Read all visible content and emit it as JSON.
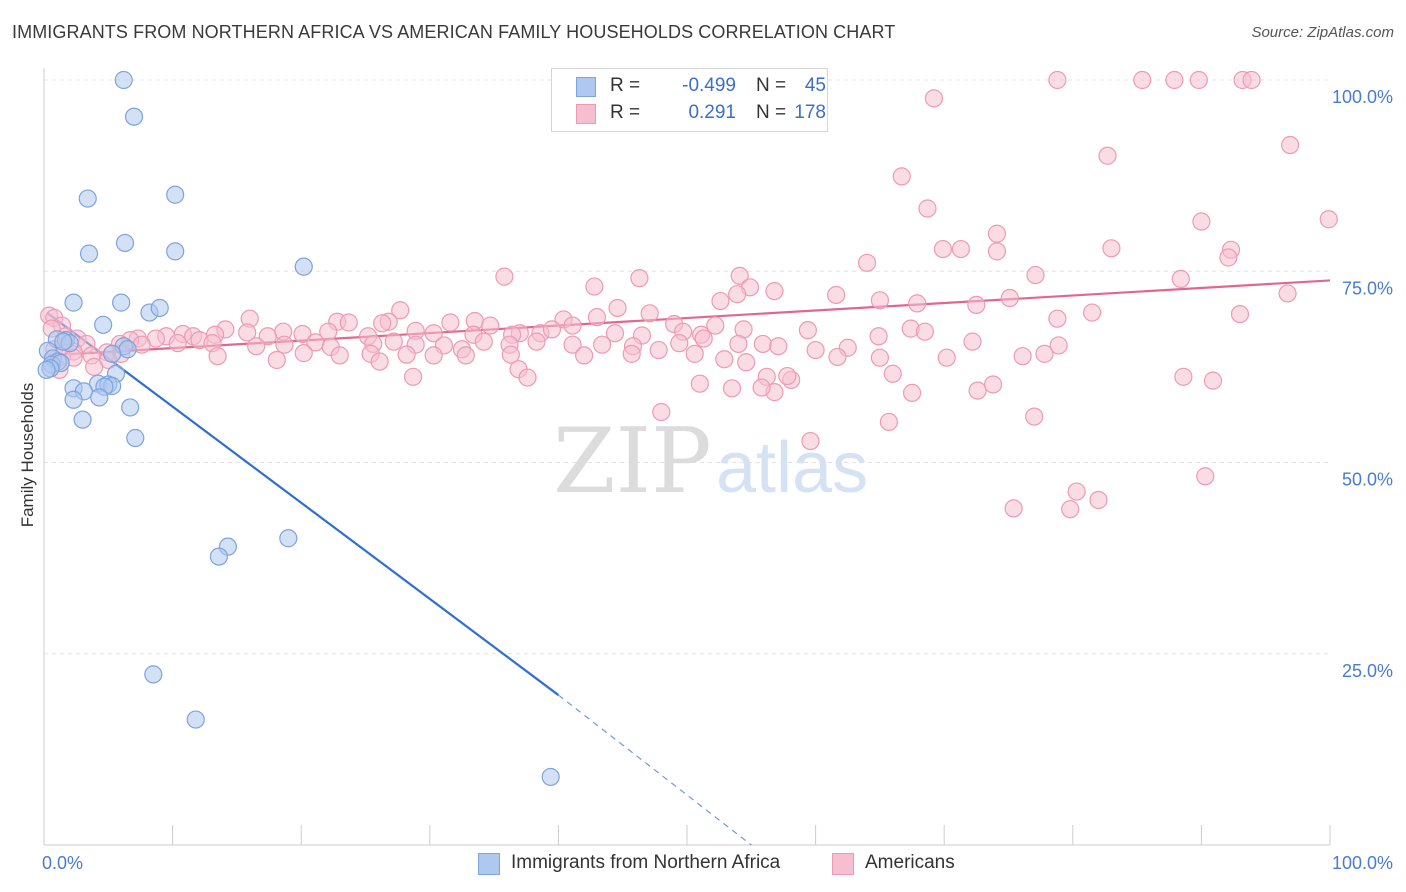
{
  "title": "IMMIGRANTS FROM NORTHERN AFRICA VS AMERICAN FAMILY HOUSEHOLDS CORRELATION CHART",
  "source": "Source: ZipAtlas.com",
  "watermark": {
    "zip": "ZIP",
    "atlas": "atlas"
  },
  "legend_top": [
    {
      "r_label": "R =",
      "r_value": "-0.499",
      "n_label": "N =",
      "n_value": "45"
    },
    {
      "r_label": "R =",
      "r_value": "0.291",
      "n_label": "N =",
      "n_value": "178"
    }
  ],
  "colors": {
    "blue_fill": "#aec8ef",
    "blue_stroke": "#7ea3dd",
    "blue_line": "#2f6fd0",
    "pink_fill": "#f6bfcf",
    "pink_stroke": "#ee9ab4",
    "pink_line": "#e2678f",
    "tick_label": "#4a7bd0",
    "grid": "#e3e3e3",
    "axis": "#cccccc"
  },
  "chart_data": {
    "type": "scatter",
    "title": "IMMIGRANTS FROM NORTHERN AFRICA VS AMERICAN FAMILY HOUSEHOLDS CORRELATION CHART",
    "xlabel": "",
    "ylabel": "Family Households",
    "xlim": [
      0,
      100
    ],
    "ylim": [
      0,
      100
    ],
    "x_tick_labels": [
      "0.0%",
      "100.0%"
    ],
    "y_ticks": [
      25,
      50,
      75,
      100
    ],
    "y_tick_labels": [
      "25.0%",
      "50.0%",
      "75.0%",
      "100.0%"
    ],
    "grid": true,
    "legend_position": "top-center",
    "series": [
      {
        "name": "Immigrants from Northern Africa",
        "color": "#aec8ef",
        "r": -0.499,
        "n": 45,
        "trend": {
          "x": [
            0.3,
            40.0
          ],
          "y": [
            69.5,
            19.6
          ],
          "dashed_to": [
            55.0,
            0.0
          ]
        },
        "points": [
          [
            6.2,
            100
          ],
          [
            7.0,
            95.2
          ],
          [
            3.4,
            84.5
          ],
          [
            10.2,
            85.0
          ],
          [
            6.3,
            78.7
          ],
          [
            3.5,
            77.3
          ],
          [
            10.2,
            77.6
          ],
          [
            20.2,
            75.6
          ],
          [
            2.3,
            70.9
          ],
          [
            6.0,
            70.9
          ],
          [
            8.2,
            69.6
          ],
          [
            9.0,
            70.2
          ],
          [
            4.6,
            68.0
          ],
          [
            1.0,
            66.1
          ],
          [
            1.7,
            66.0
          ],
          [
            2.0,
            65.6
          ],
          [
            1.5,
            65.8
          ],
          [
            6.2,
            65.2
          ],
          [
            6.5,
            64.8
          ],
          [
            5.3,
            64.2
          ],
          [
            0.3,
            64.6
          ],
          [
            0.7,
            63.6
          ],
          [
            1.1,
            63.2
          ],
          [
            0.6,
            62.8
          ],
          [
            1.3,
            63.0
          ],
          [
            0.5,
            62.3
          ],
          [
            0.2,
            62.1
          ],
          [
            5.6,
            61.6
          ],
          [
            4.2,
            60.3
          ],
          [
            5.0,
            60.2
          ],
          [
            5.3,
            60.0
          ],
          [
            4.7,
            59.9
          ],
          [
            2.3,
            59.7
          ],
          [
            3.1,
            59.3
          ],
          [
            4.3,
            58.5
          ],
          [
            2.3,
            58.2
          ],
          [
            6.7,
            57.2
          ],
          [
            3.0,
            55.6
          ],
          [
            7.1,
            53.2
          ],
          [
            19.0,
            40.1
          ],
          [
            14.3,
            39.0
          ],
          [
            13.6,
            37.7
          ],
          [
            8.5,
            22.3
          ],
          [
            11.8,
            16.4
          ],
          [
            39.4,
            8.9
          ]
        ]
      },
      {
        "name": "Americans",
        "color": "#f6bfcf",
        "r": 0.291,
        "n": 178,
        "trend": {
          "x": [
            0.3,
            100
          ],
          "y": [
            64.0,
            73.8
          ]
        },
        "points": [
          [
            78.8,
            100
          ],
          [
            85.4,
            100
          ],
          [
            87.9,
            100
          ],
          [
            89.8,
            100
          ],
          [
            93.2,
            100
          ],
          [
            93.9,
            100
          ],
          [
            69.2,
            97.6
          ],
          [
            96.9,
            91.5
          ],
          [
            82.7,
            90.1
          ],
          [
            66.7,
            87.4
          ],
          [
            68.7,
            83.2
          ],
          [
            99.9,
            81.8
          ],
          [
            90.0,
            81.5
          ],
          [
            74.1,
            79.9
          ],
          [
            69.9,
            77.9
          ],
          [
            71.3,
            77.9
          ],
          [
            83.0,
            78.0
          ],
          [
            92.3,
            77.8
          ],
          [
            74.1,
            77.6
          ],
          [
            92.1,
            76.8
          ],
          [
            64.0,
            76.1
          ],
          [
            77.1,
            74.5
          ],
          [
            35.8,
            74.3
          ],
          [
            46.3,
            74.1
          ],
          [
            54.1,
            74.4
          ],
          [
            88.4,
            74.0
          ],
          [
            42.8,
            73.0
          ],
          [
            54.9,
            72.9
          ],
          [
            56.8,
            72.4
          ],
          [
            53.9,
            72.0
          ],
          [
            61.6,
            71.9
          ],
          [
            75.1,
            71.5
          ],
          [
            65.0,
            71.2
          ],
          [
            52.6,
            71.1
          ],
          [
            67.9,
            70.8
          ],
          [
            72.5,
            70.6
          ],
          [
            96.7,
            72.1
          ],
          [
            44.6,
            70.2
          ],
          [
            47.1,
            69.5
          ],
          [
            93.0,
            69.4
          ],
          [
            81.5,
            69.6
          ],
          [
            27.7,
            69.9
          ],
          [
            78.8,
            68.8
          ],
          [
            43.0,
            69.0
          ],
          [
            40.4,
            68.7
          ],
          [
            33.5,
            68.5
          ],
          [
            41.1,
            67.9
          ],
          [
            26.8,
            68.4
          ],
          [
            49.0,
            68.1
          ],
          [
            52.2,
            67.9
          ],
          [
            22.8,
            68.4
          ],
          [
            23.7,
            68.3
          ],
          [
            31.6,
            68.3
          ],
          [
            34.7,
            67.9
          ],
          [
            16.0,
            68.8
          ],
          [
            26.3,
            68.2
          ],
          [
            0.4,
            69.2
          ],
          [
            0.8,
            68.9
          ],
          [
            1.4,
            67.9
          ],
          [
            14.1,
            67.4
          ],
          [
            15.8,
            67.0
          ],
          [
            18.6,
            67.1
          ],
          [
            22.1,
            67.1
          ],
          [
            28.9,
            67.2
          ],
          [
            37.0,
            66.9
          ],
          [
            38.6,
            66.9
          ],
          [
            44.4,
            66.9
          ],
          [
            46.5,
            66.6
          ],
          [
            49.7,
            67.1
          ],
          [
            51.1,
            66.7
          ],
          [
            54.4,
            67.4
          ],
          [
            59.4,
            67.3
          ],
          [
            67.4,
            67.5
          ],
          [
            68.5,
            67.1
          ],
          [
            39.5,
            67.4
          ],
          [
            30.3,
            66.9
          ],
          [
            33.4,
            66.7
          ],
          [
            36.4,
            66.7
          ],
          [
            25.2,
            66.5
          ],
          [
            20.1,
            66.8
          ],
          [
            10.8,
            66.8
          ],
          [
            11.6,
            66.5
          ],
          [
            13.3,
            66.7
          ],
          [
            12.1,
            66.0
          ],
          [
            17.4,
            66.5
          ],
          [
            9.5,
            66.5
          ],
          [
            8.7,
            66.2
          ],
          [
            7.3,
            66.2
          ],
          [
            0.6,
            67.5
          ],
          [
            1.7,
            66.5
          ],
          [
            2.6,
            66.2
          ],
          [
            6.7,
            66.0
          ],
          [
            5.9,
            65.5
          ],
          [
            3.3,
            65.5
          ],
          [
            7.6,
            65.4
          ],
          [
            10.4,
            65.6
          ],
          [
            13.1,
            65.6
          ],
          [
            16.5,
            65.2
          ],
          [
            18.7,
            65.4
          ],
          [
            21.1,
            65.7
          ],
          [
            22.3,
            65.1
          ],
          [
            25.6,
            65.5
          ],
          [
            27.2,
            65.8
          ],
          [
            28.9,
            65.4
          ],
          [
            31.1,
            65.3
          ],
          [
            32.5,
            64.8
          ],
          [
            34.2,
            65.8
          ],
          [
            36.2,
            65.4
          ],
          [
            38.3,
            65.8
          ],
          [
            41.1,
            65.4
          ],
          [
            43.4,
            65.4
          ],
          [
            45.8,
            65.2
          ],
          [
            47.8,
            64.7
          ],
          [
            49.4,
            65.6
          ],
          [
            51.3,
            66.2
          ],
          [
            54.0,
            65.5
          ],
          [
            55.9,
            65.5
          ],
          [
            57.1,
            65.2
          ],
          [
            64.9,
            66.5
          ],
          [
            72.2,
            65.8
          ],
          [
            78.9,
            65.3
          ],
          [
            60.0,
            64.7
          ],
          [
            62.5,
            65.0
          ],
          [
            2.3,
            64.5
          ],
          [
            4.9,
            64.4
          ],
          [
            6.0,
            64.2
          ],
          [
            3.7,
            64.0
          ],
          [
            0.8,
            64.8
          ],
          [
            1.4,
            63.9
          ],
          [
            2.3,
            63.7
          ],
          [
            5.0,
            63.4
          ],
          [
            13.5,
            63.9
          ],
          [
            18.1,
            63.4
          ],
          [
            20.2,
            64.3
          ],
          [
            25.4,
            64.2
          ],
          [
            28.2,
            64.1
          ],
          [
            30.3,
            64.0
          ],
          [
            32.8,
            64.0
          ],
          [
            36.3,
            64.1
          ],
          [
            42.0,
            64.0
          ],
          [
            45.7,
            64.2
          ],
          [
            50.6,
            64.2
          ],
          [
            52.9,
            63.5
          ],
          [
            54.6,
            63.1
          ],
          [
            61.7,
            63.8
          ],
          [
            65.0,
            63.7
          ],
          [
            70.2,
            63.7
          ],
          [
            76.1,
            63.9
          ],
          [
            77.8,
            64.2
          ],
          [
            26.1,
            63.2
          ],
          [
            3.9,
            62.5
          ],
          [
            1.2,
            62.1
          ],
          [
            56.2,
            61.2
          ],
          [
            58.1,
            60.8
          ],
          [
            66.0,
            61.6
          ],
          [
            88.6,
            61.2
          ],
          [
            90.9,
            60.7
          ],
          [
            36.9,
            62.2
          ],
          [
            37.6,
            61.1
          ],
          [
            51.0,
            60.3
          ],
          [
            53.5,
            59.7
          ],
          [
            67.5,
            59.1
          ],
          [
            72.6,
            59.4
          ],
          [
            73.8,
            60.2
          ],
          [
            28.7,
            61.2
          ],
          [
            56.8,
            59.2
          ],
          [
            55.8,
            59.8
          ],
          [
            65.7,
            55.3
          ],
          [
            48.0,
            56.6
          ],
          [
            77.0,
            56.0
          ],
          [
            59.6,
            52.8
          ],
          [
            90.3,
            48.2
          ],
          [
            80.3,
            46.2
          ],
          [
            82.0,
            45.1
          ],
          [
            75.4,
            44.0
          ],
          [
            79.8,
            43.9
          ],
          [
            23.0,
            64.0
          ],
          [
            57.8,
            61.3
          ]
        ]
      }
    ]
  },
  "legend_bottom": [
    "Immigrants from Northern Africa",
    "Americans"
  ]
}
